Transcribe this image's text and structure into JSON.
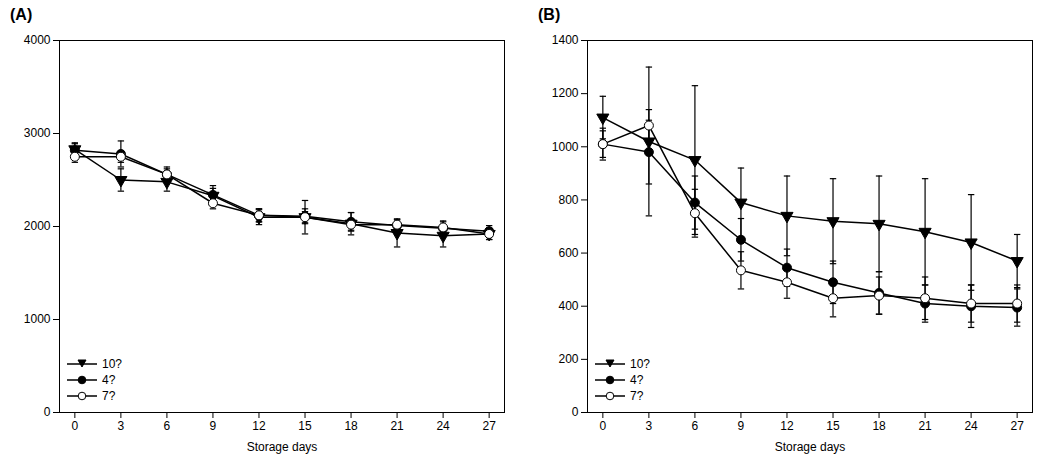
{
  "chart_data": [
    {
      "type": "line",
      "title": "(A)",
      "xlabel": "Storage days",
      "x": [
        0,
        3,
        6,
        9,
        12,
        15,
        18,
        21,
        24,
        27
      ],
      "xlim": [
        -1,
        28
      ],
      "xticks": [
        0,
        3,
        6,
        9,
        12,
        15,
        18,
        21,
        24,
        27
      ],
      "ylim": [
        0,
        4000
      ],
      "yticks": [
        0,
        1000,
        2000,
        3000,
        4000
      ],
      "grid": false,
      "legend": "lower left",
      "series": [
        {
          "name": "10?",
          "color": "#000000",
          "marker": "triangle_down",
          "values": [
            2830,
            2500,
            2480,
            2330,
            2100,
            2100,
            2030,
            1930,
            1900,
            1920
          ],
          "yerr": [
            60,
            120,
            100,
            80,
            80,
            180,
            120,
            150,
            120,
            60
          ]
        },
        {
          "name": "4?",
          "color": "#000000",
          "marker": "circle",
          "values": [
            2820,
            2780,
            2560,
            2340,
            2120,
            2110,
            2050,
            2010,
            1980,
            1950
          ],
          "yerr": [
            80,
            140,
            80,
            100,
            70,
            80,
            100,
            60,
            70,
            60
          ]
        },
        {
          "name": "7?",
          "color": "#000000",
          "marker": "circle_open",
          "values": [
            2750,
            2750,
            2560,
            2250,
            2120,
            2100,
            2020,
            2020,
            1990,
            1920
          ],
          "yerr": [
            60,
            60,
            60,
            60,
            70,
            60,
            60,
            60,
            70,
            60
          ]
        }
      ]
    },
    {
      "type": "line",
      "title": "(B)",
      "xlabel": "Storage days",
      "x": [
        0,
        3,
        6,
        9,
        12,
        15,
        18,
        21,
        24,
        27
      ],
      "xlim": [
        -1,
        28
      ],
      "xticks": [
        0,
        3,
        6,
        9,
        12,
        15,
        18,
        21,
        24,
        27
      ],
      "ylim": [
        0,
        1400
      ],
      "yticks": [
        0,
        200,
        400,
        600,
        800,
        1000,
        1200,
        1400
      ],
      "grid": false,
      "legend": "lower left",
      "series": [
        {
          "name": "10?",
          "color": "#000000",
          "marker": "triangle_down",
          "values": [
            1110,
            1020,
            950,
            790,
            740,
            720,
            710,
            680,
            640,
            570
          ],
          "yerr": [
            80,
            280,
            280,
            130,
            150,
            160,
            180,
            200,
            180,
            100
          ]
        },
        {
          "name": "4?",
          "color": "#000000",
          "marker": "circle",
          "values": [
            1010,
            980,
            790,
            650,
            545,
            490,
            450,
            410,
            400,
            395
          ],
          "yerr": [
            60,
            120,
            100,
            80,
            70,
            80,
            80,
            70,
            80,
            70
          ]
        },
        {
          "name": "7?",
          "color": "#000000",
          "marker": "circle_open",
          "values": [
            1010,
            1080,
            750,
            535,
            490,
            430,
            440,
            430,
            410,
            410
          ],
          "yerr": [
            50,
            60,
            90,
            70,
            60,
            70,
            70,
            80,
            70,
            70
          ]
        }
      ]
    }
  ]
}
